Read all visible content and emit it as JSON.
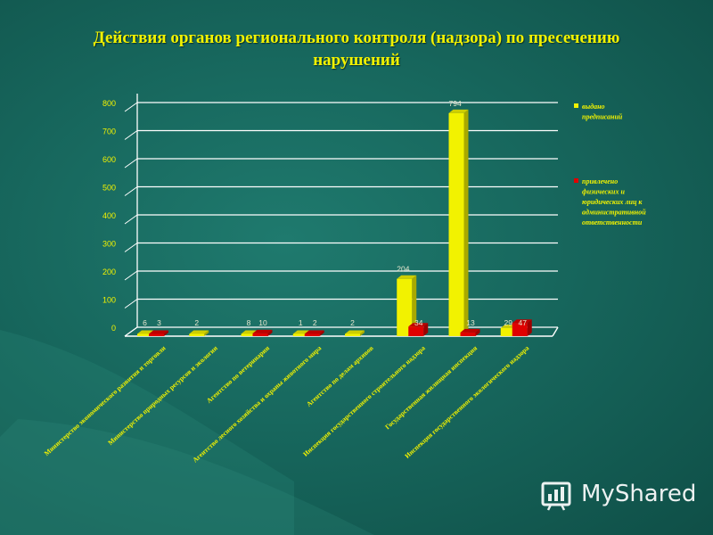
{
  "title": {
    "line1": "Действия органов регионального контроля (надзора) по пресечению",
    "line2": "нарушений"
  },
  "colors": {
    "series1": "#f2f200",
    "series2": "#e00000",
    "axis": "#ffffff",
    "labels": "#f2f200",
    "values": "#e8e8d0"
  },
  "watermark": {
    "text": "MyShared",
    "icon": "myshared-logo-icon"
  },
  "chart_data": {
    "type": "bar",
    "ylim": [
      0,
      800
    ],
    "yticks": [
      0,
      100,
      200,
      300,
      400,
      500,
      600,
      700,
      800
    ],
    "grid": true,
    "legend_position": "right",
    "categories": [
      "Министерство экономического развития и торговли",
      "Министерство природных ресурсов и экологии",
      "Агентство по ветеринарии",
      "Агентство лесного хозяйства и охраны животного мира",
      "Агентство по делам архивов",
      "Инспекция государственного строительного надзора",
      "Государственная жилищная инспекция",
      "Инспекция государственного экологического надзора"
    ],
    "series": [
      {
        "name": "выдано предписаний",
        "values": [
          6,
          2,
          8,
          1,
          2,
          204,
          794,
          29
        ]
      },
      {
        "name": "привлечено физических и юридических лиц к административной ответственности",
        "values": [
          3,
          null,
          10,
          2,
          null,
          34,
          13,
          47
        ]
      }
    ],
    "legend": [
      {
        "lines": [
          "выдано",
          "предписаний"
        ]
      },
      {
        "lines": [
          "привлечено",
          "физических и",
          "юридических лиц к",
          "административной",
          "ответственности"
        ]
      }
    ]
  }
}
